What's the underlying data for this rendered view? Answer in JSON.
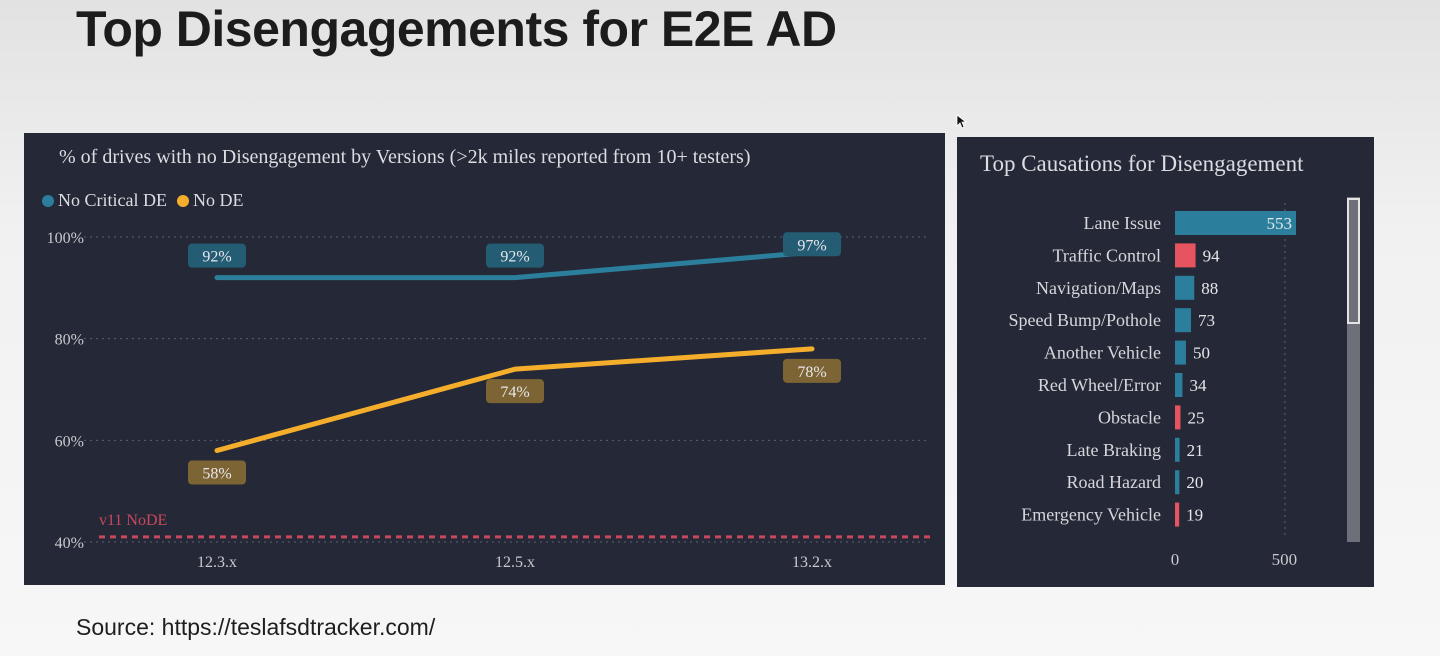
{
  "slide": {
    "title": "Top Disengagements for E2E AD",
    "source": "Source: https://teslafsdtracker.com/"
  },
  "colors": {
    "panel_bg": "#252836",
    "no_critical_de": "#2b7f9c",
    "no_de": "#f5ae2c",
    "reference": "#c8485e",
    "bar_default": "#2b7f9c",
    "bar_highlight": "#e7545f"
  },
  "chart_data": [
    {
      "type": "line",
      "title": "% of drives with no Disengagement by Versions (>2k miles reported from 10+ testers)",
      "categories": [
        "12.3.x",
        "12.5.x",
        "13.2.x"
      ],
      "series": [
        {
          "name": "No Critical DE",
          "values": [
            92,
            92,
            97
          ],
          "labels": [
            "92%",
            "92%",
            "97%"
          ]
        },
        {
          "name": "No DE",
          "values": [
            58,
            74,
            78
          ],
          "labels": [
            "58%",
            "74%",
            "78%"
          ]
        }
      ],
      "y_ticks": [
        100,
        80,
        60,
        40
      ],
      "y_tick_labels": [
        "100%",
        "80%",
        "60%",
        "40%"
      ],
      "ylim": [
        40,
        100
      ],
      "reference_line": {
        "label": "v11 NoDE",
        "value": 41
      },
      "legend": "top-left",
      "grid": true
    },
    {
      "type": "bar",
      "orientation": "horizontal",
      "title": "Top Causations for Disengagement",
      "categories": [
        "Lane Issue",
        "Traffic Control",
        "Navigation/Maps",
        "Speed Bump/Pothole",
        "Another Vehicle",
        "Red Wheel/Error",
        "Obstacle",
        "Late Braking",
        "Road Hazard",
        "Emergency Vehicle"
      ],
      "values": [
        553,
        94,
        88,
        73,
        50,
        34,
        25,
        21,
        20,
        19
      ],
      "value_labels": [
        "553",
        "94",
        "88",
        "73",
        "50",
        "34",
        "25",
        "21",
        "20",
        "19"
      ],
      "highlighted": [
        "Traffic Control",
        "Obstacle",
        "Emergency Vehicle"
      ],
      "x_ticks": [
        0,
        500
      ],
      "x_tick_labels": [
        "0",
        "500"
      ],
      "xlim": [
        0,
        553
      ]
    }
  ]
}
